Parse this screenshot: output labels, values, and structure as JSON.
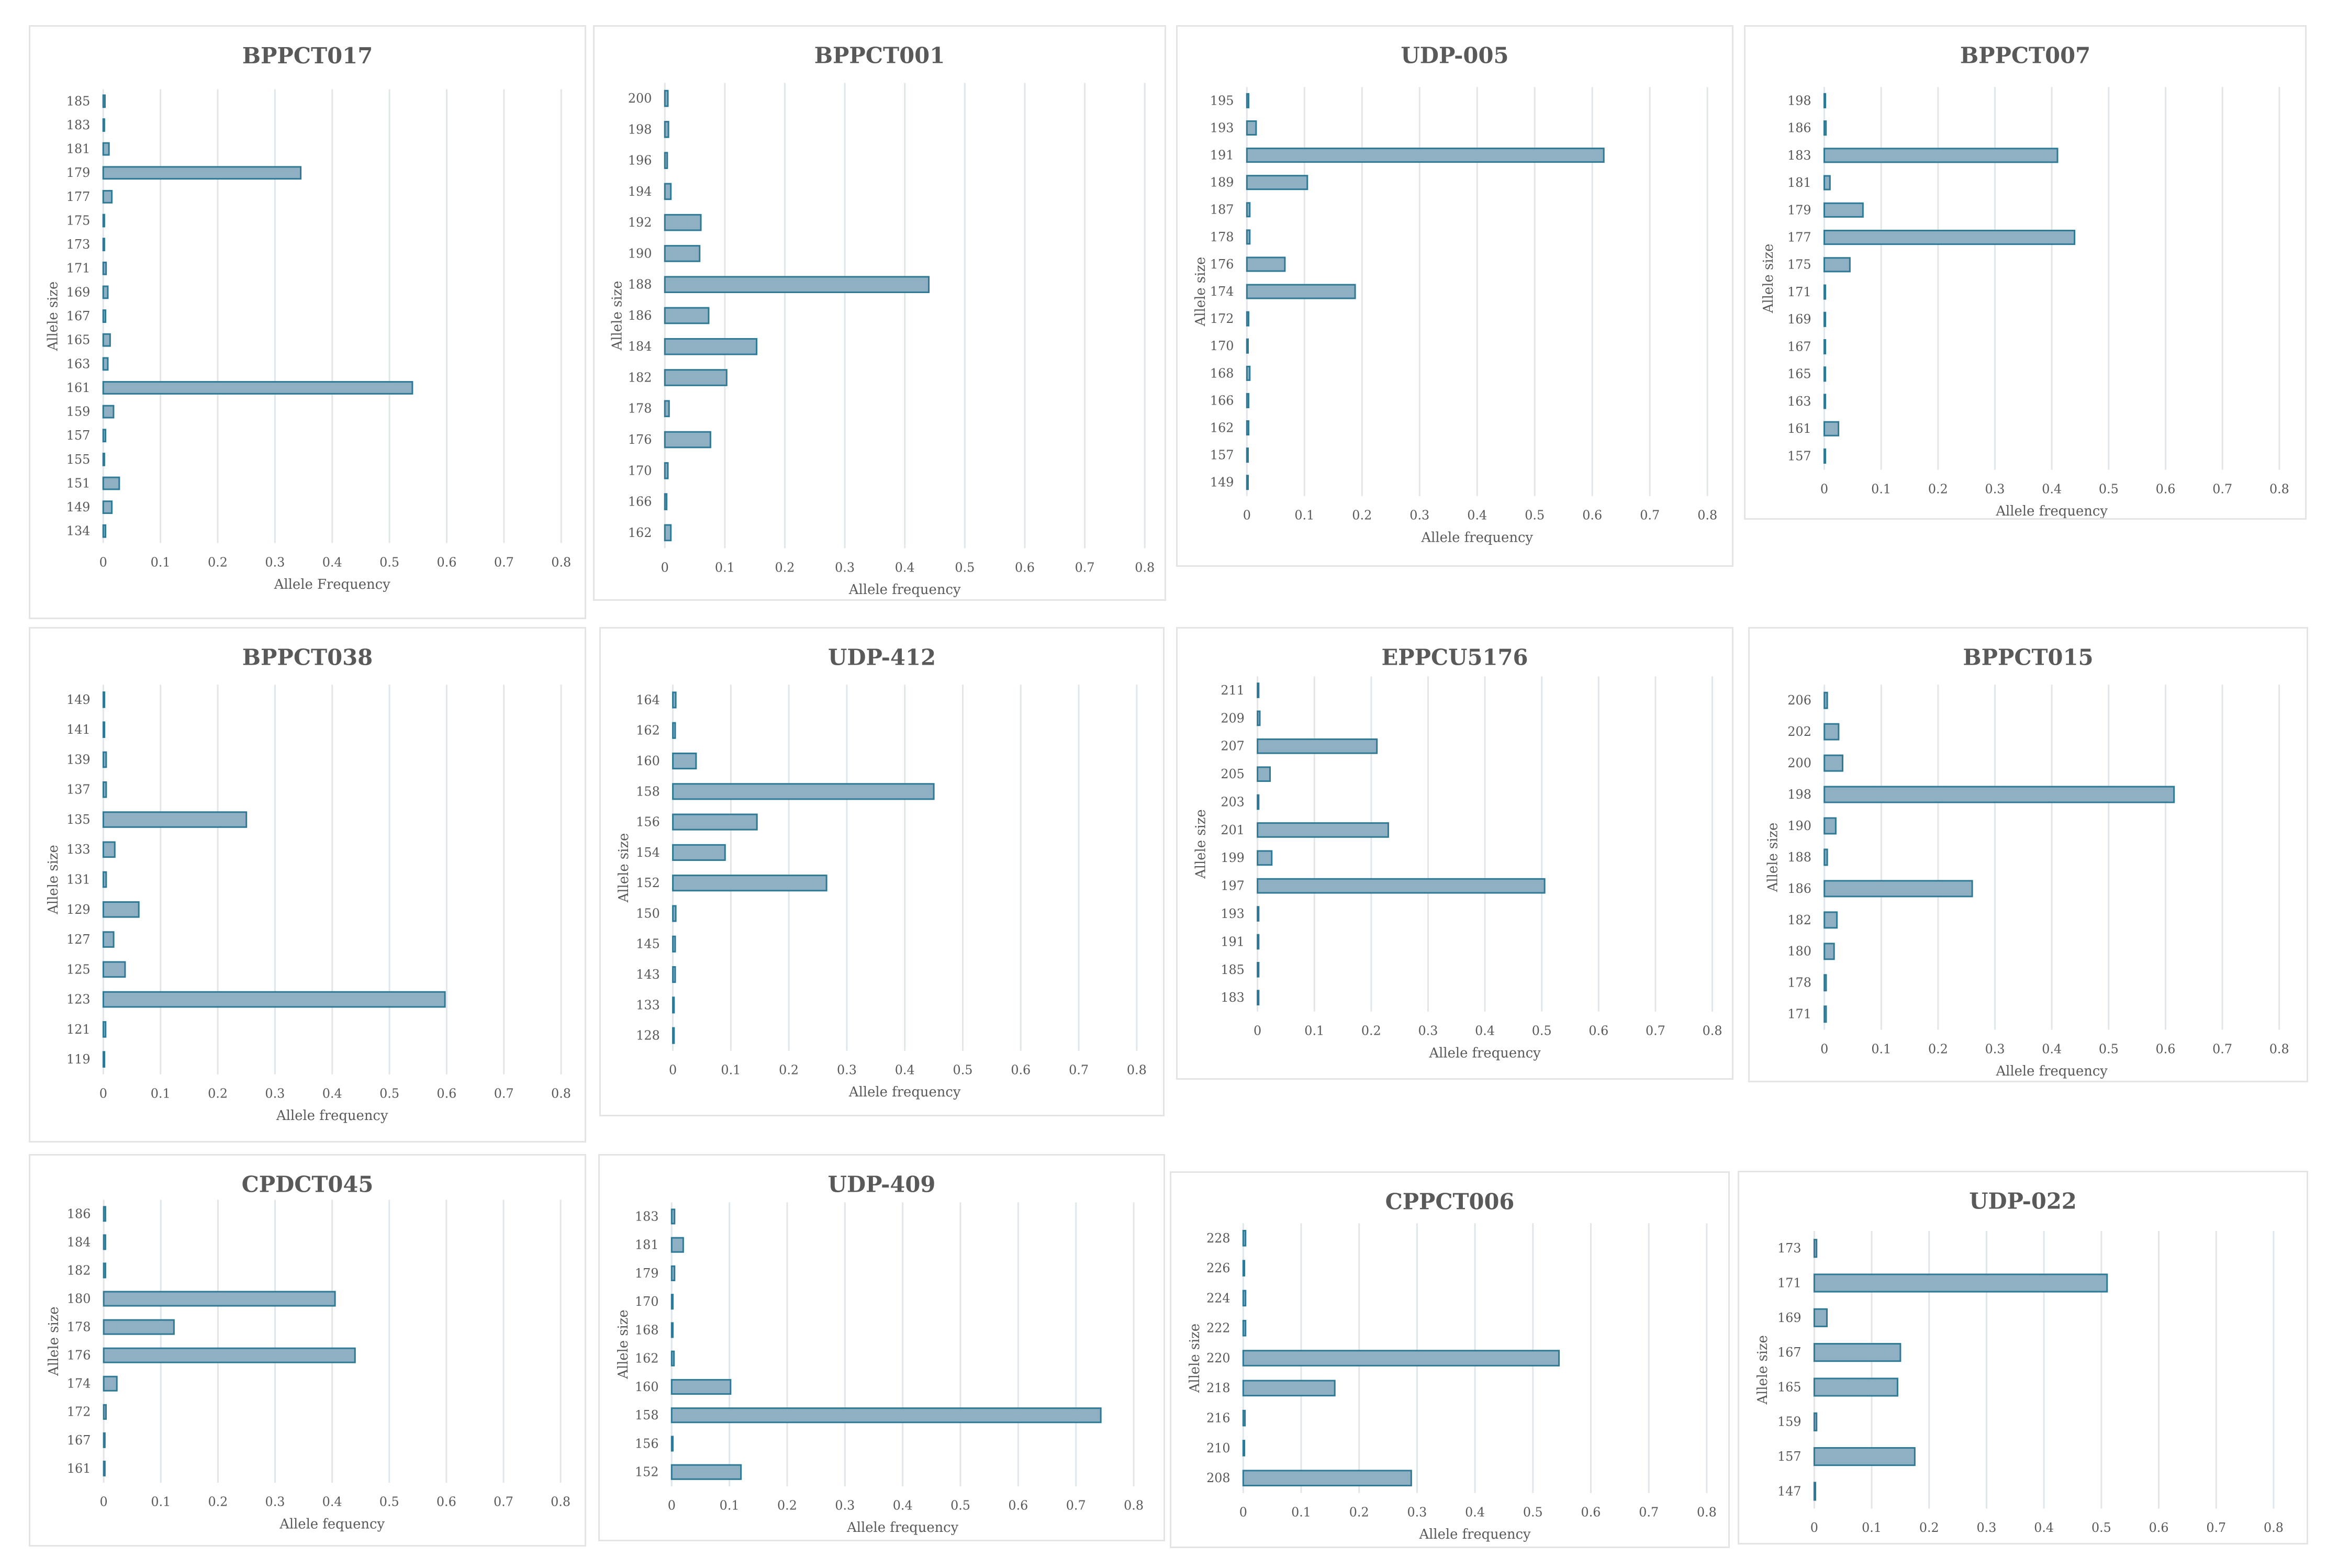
{
  "colors": {
    "bar_fill": "#8fb0c2",
    "bar_stroke": "#2e7a96",
    "grid": "#e0e6ea",
    "text": "#595959"
  },
  "chart_data": [
    {
      "type": "bar",
      "orientation": "horizontal",
      "title": "BPPCT017",
      "xlabel": "Allele Frequency",
      "ylabel": "Allele size",
      "categories": [
        "185",
        "183",
        "181",
        "179",
        "177",
        "175",
        "173",
        "171",
        "169",
        "167",
        "165",
        "163",
        "161",
        "159",
        "157",
        "155",
        "151",
        "149",
        "134"
      ],
      "values": [
        0.003,
        0.002,
        0.01,
        0.345,
        0.015,
        0.002,
        0.002,
        0.005,
        0.008,
        0.004,
        0.012,
        0.008,
        0.54,
        0.018,
        0.004,
        0.002,
        0.028,
        0.015,
        0.004
      ],
      "xlim": [
        0,
        0.8
      ],
      "xticks": [
        "0",
        "0.1",
        "0.2",
        "0.3",
        "0.4",
        "0.5",
        "0.6",
        "0.7",
        "0.8"
      ],
      "grid": true
    },
    {
      "type": "bar",
      "orientation": "horizontal",
      "title": "BPPCT001",
      "xlabel": "Allele frequency",
      "ylabel": "Allele size",
      "categories": [
        "200",
        "198",
        "196",
        "194",
        "192",
        "190",
        "188",
        "186",
        "184",
        "182",
        "178",
        "176",
        "170",
        "166",
        "162"
      ],
      "values": [
        0.005,
        0.006,
        0.004,
        0.01,
        0.06,
        0.058,
        0.44,
        0.073,
        0.153,
        0.103,
        0.007,
        0.076,
        0.005,
        0.003,
        0.01
      ],
      "xlim": [
        0,
        0.8
      ],
      "xticks": [
        "0",
        "0.1",
        "0.2",
        "0.3",
        "0.4",
        "0.5",
        "0.6",
        "0.7",
        "0.8"
      ],
      "grid": true
    },
    {
      "type": "bar",
      "orientation": "horizontal",
      "title": "UDP-005",
      "xlabel": "Allele frequency",
      "ylabel": "Allele size",
      "categories": [
        "195",
        "193",
        "191",
        "189",
        "187",
        "178",
        "176",
        "174",
        "172",
        "170",
        "168",
        "166",
        "162",
        "157",
        "149"
      ],
      "values": [
        0.003,
        0.016,
        0.62,
        0.105,
        0.005,
        0.005,
        0.066,
        0.188,
        0.003,
        0.002,
        0.005,
        0.003,
        0.003,
        0.002,
        0.002
      ],
      "xlim": [
        0,
        0.8
      ],
      "xticks": [
        "0",
        "0.1",
        "0.2",
        "0.3",
        "0.4",
        "0.5",
        "0.6",
        "0.7",
        "0.8"
      ],
      "grid": true
    },
    {
      "type": "bar",
      "orientation": "horizontal",
      "title": "BPPCT007",
      "xlabel": "Allele frequency",
      "ylabel": "Allele size",
      "categories": [
        "198",
        "186",
        "183",
        "181",
        "179",
        "177",
        "175",
        "171",
        "169",
        "167",
        "165",
        "163",
        "161",
        "157"
      ],
      "values": [
        0.002,
        0.003,
        0.41,
        0.01,
        0.068,
        0.44,
        0.045,
        0.002,
        0.002,
        0.002,
        0.002,
        0.002,
        0.025,
        0.002
      ],
      "xlim": [
        0,
        0.8
      ],
      "xticks": [
        "0",
        "0.1",
        "0.2",
        "0.3",
        "0.4",
        "0.5",
        "0.6",
        "0.7",
        "0.8"
      ],
      "grid": true
    },
    {
      "type": "bar",
      "orientation": "horizontal",
      "title": "BPPCT038",
      "xlabel": "Allele frequency",
      "ylabel": "Allele size",
      "categories": [
        "149",
        "141",
        "139",
        "137",
        "135",
        "133",
        "131",
        "129",
        "127",
        "125",
        "123",
        "121",
        "119"
      ],
      "values": [
        0.002,
        0.002,
        0.005,
        0.005,
        0.25,
        0.02,
        0.005,
        0.062,
        0.018,
        0.038,
        0.597,
        0.004,
        0.002
      ],
      "xlim": [
        0,
        0.8
      ],
      "xticks": [
        "0",
        "0.1",
        "0.2",
        "0.3",
        "0.4",
        "0.5",
        "0.6",
        "0.7",
        "0.8"
      ],
      "grid": true
    },
    {
      "type": "bar",
      "orientation": "horizontal",
      "title": "UDP-412",
      "xlabel": "Allele frequency",
      "ylabel": "Allele size",
      "categories": [
        "164",
        "162",
        "160",
        "158",
        "156",
        "154",
        "152",
        "150",
        "145",
        "143",
        "133",
        "128"
      ],
      "values": [
        0.005,
        0.004,
        0.04,
        0.45,
        0.145,
        0.09,
        0.265,
        0.005,
        0.004,
        0.004,
        0.002,
        0.002
      ],
      "xlim": [
        0,
        0.8
      ],
      "xticks": [
        "0",
        "0.1",
        "0.2",
        "0.3",
        "0.4",
        "0.5",
        "0.6",
        "0.7",
        "0.8"
      ],
      "grid": true
    },
    {
      "type": "bar",
      "orientation": "horizontal",
      "title": "EPPCU5176",
      "xlabel": "Allele frequency",
      "ylabel": "Allele size",
      "categories": [
        "211",
        "209",
        "207",
        "205",
        "203",
        "201",
        "199",
        "197",
        "193",
        "191",
        "185",
        "183"
      ],
      "values": [
        0.002,
        0.004,
        0.21,
        0.022,
        0.002,
        0.23,
        0.025,
        0.505,
        0.002,
        0.002,
        0.002,
        0.002
      ],
      "xlim": [
        0,
        0.8
      ],
      "xticks": [
        "0",
        "0.1",
        "0.2",
        "0.3",
        "0.4",
        "0.5",
        "0.6",
        "0.7",
        "0.8"
      ],
      "grid": true
    },
    {
      "type": "bar",
      "orientation": "horizontal",
      "title": "BPPCT015",
      "xlabel": "Allele frequency",
      "ylabel": "Allele size",
      "categories": [
        "206",
        "202",
        "200",
        "198",
        "190",
        "188",
        "186",
        "182",
        "180",
        "178",
        "171"
      ],
      "values": [
        0.005,
        0.025,
        0.032,
        0.615,
        0.02,
        0.005,
        0.26,
        0.022,
        0.017,
        0.003,
        0.003
      ],
      "xlim": [
        0,
        0.8
      ],
      "xticks": [
        "0",
        "0.1",
        "0.2",
        "0.3",
        "0.4",
        "0.5",
        "0.6",
        "0.7",
        "0.8"
      ],
      "grid": true
    },
    {
      "type": "bar",
      "orientation": "horizontal",
      "title": "CPDCT045",
      "xlabel": "Allele fequency",
      "ylabel": "Allele size",
      "categories": [
        "186",
        "184",
        "182",
        "180",
        "178",
        "176",
        "174",
        "172",
        "167",
        "161"
      ],
      "values": [
        0.003,
        0.003,
        0.003,
        0.405,
        0.123,
        0.44,
        0.023,
        0.004,
        0.002,
        0.002
      ],
      "xlim": [
        0,
        0.8
      ],
      "xticks": [
        "0",
        "0.1",
        "0.2",
        "0.3",
        "0.4",
        "0.5",
        "0.6",
        "0.7",
        "0.8"
      ],
      "grid": true
    },
    {
      "type": "bar",
      "orientation": "horizontal",
      "title": "UDP-409",
      "xlabel": "Allele frequency",
      "ylabel": "Allele size",
      "categories": [
        "183",
        "181",
        "179",
        "170",
        "168",
        "162",
        "160",
        "158",
        "156",
        "152"
      ],
      "values": [
        0.005,
        0.02,
        0.005,
        0.002,
        0.002,
        0.004,
        0.102,
        0.743,
        0.002,
        0.12
      ],
      "xlim": [
        0,
        0.8
      ],
      "xticks": [
        "0",
        "0.1",
        "0.2",
        "0.3",
        "0.4",
        "0.5",
        "0.6",
        "0.7",
        "0.8"
      ],
      "grid": true
    },
    {
      "type": "bar",
      "orientation": "horizontal",
      "title": "CPPCT006",
      "xlabel": "Allele frequency",
      "ylabel": "Allele size",
      "categories": [
        "228",
        "226",
        "224",
        "222",
        "220",
        "218",
        "216",
        "210",
        "208"
      ],
      "values": [
        0.004,
        0.002,
        0.004,
        0.004,
        0.545,
        0.158,
        0.003,
        0.002,
        0.29
      ],
      "xlim": [
        0,
        0.8
      ],
      "xticks": [
        "0",
        "0.1",
        "0.2",
        "0.3",
        "0.4",
        "0.5",
        "0.6",
        "0.7",
        "0.8"
      ],
      "grid": true
    },
    {
      "type": "bar",
      "orientation": "horizontal",
      "title": "UDP-022",
      "xlabel": "Allele frequency",
      "ylabel": "Allele size",
      "categories": [
        "173",
        "171",
        "169",
        "167",
        "165",
        "159",
        "157",
        "147"
      ],
      "values": [
        0.004,
        0.51,
        0.022,
        0.15,
        0.145,
        0.004,
        0.175,
        0.002
      ],
      "xlim": [
        0,
        0.8
      ],
      "xticks": [
        "0",
        "0.1",
        "0.2",
        "0.3",
        "0.4",
        "0.5",
        "0.6",
        "0.7",
        "0.8"
      ],
      "grid": true
    }
  ]
}
